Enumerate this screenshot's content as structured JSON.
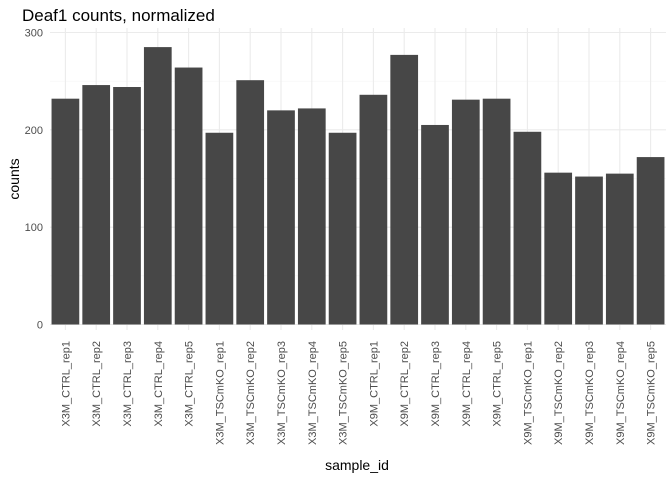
{
  "chart_data": {
    "type": "bar",
    "title": "Deaf1 counts, normalized",
    "xlabel": "sample_id",
    "ylabel": "counts",
    "ylim": [
      0,
      300
    ],
    "yticks": [
      0,
      100,
      200,
      300
    ],
    "grid": true,
    "bar_color": "#474747",
    "categories": [
      "X3M_CTRL_rep1",
      "X3M_CTRL_rep2",
      "X3M_CTRL_rep3",
      "X3M_CTRL_rep4",
      "X3M_CTRL_rep5",
      "X3M_TSCmKO_rep1",
      "X3M_TSCmKO_rep2",
      "X3M_TSCmKO_rep3",
      "X3M_TSCmKO_rep4",
      "X3M_TSCmKO_rep5",
      "X9M_CTRL_rep1",
      "X9M_CTRL_rep2",
      "X9M_CTRL_rep3",
      "X9M_CTRL_rep4",
      "X9M_CTRL_rep5",
      "X9M_TSCmKO_rep1",
      "X9M_TSCmKO_rep2",
      "X9M_TSCmKO_rep3",
      "X9M_TSCmKO_rep4",
      "X9M_TSCmKO_rep5"
    ],
    "values": [
      232,
      246,
      244,
      285,
      264,
      197,
      251,
      220,
      222,
      197,
      236,
      277,
      205,
      231,
      232,
      198,
      156,
      152,
      155,
      172
    ]
  }
}
